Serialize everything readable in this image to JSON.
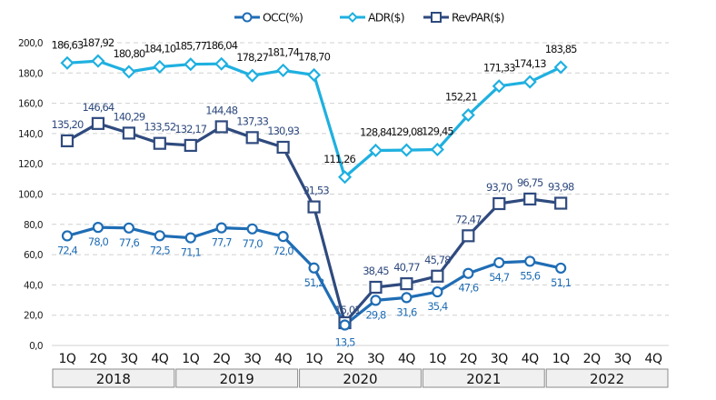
{
  "chart_data": {
    "type": "line",
    "title": "",
    "xlabel": "",
    "ylabel": "",
    "ylim": [
      0,
      200
    ],
    "yticks": [
      "0,0",
      "20,0",
      "40,0",
      "60,0",
      "80,0",
      "100,0",
      "120,0",
      "140,0",
      "160,0",
      "180,0",
      "200,0"
    ],
    "grid": true,
    "legend_position": "top-center",
    "years": [
      "2018",
      "2019",
      "2020",
      "2021",
      "2022"
    ],
    "quarters": [
      "1Q",
      "2Q",
      "3Q",
      "4Q"
    ],
    "categories": [
      "1Q",
      "2Q",
      "3Q",
      "4Q",
      "1Q",
      "2Q",
      "3Q",
      "4Q",
      "1Q",
      "2Q",
      "3Q",
      "4Q",
      "1Q",
      "2Q",
      "3Q",
      "4Q",
      "1Q",
      "2Q",
      "3Q",
      "4Q"
    ],
    "series": [
      {
        "name": "OCC(%)",
        "key": "occ",
        "color": "#1f6db5",
        "marker": "circle",
        "values": [
          72.4,
          78.0,
          77.6,
          72.5,
          71.1,
          77.7,
          77.0,
          72.0,
          51.2,
          13.5,
          29.8,
          31.6,
          35.4,
          47.6,
          54.7,
          55.6,
          51.1,
          null,
          null,
          null
        ],
        "labels": [
          "72,4",
          "78,0",
          "77,6",
          "72,5",
          "71,1",
          "77,7",
          "77,0",
          "72,0",
          "51,2",
          "13,5",
          "29,8",
          "31,6",
          "35,4",
          "47,6",
          "54,7",
          "55,6",
          "51,1",
          "",
          "",
          ""
        ]
      },
      {
        "name": "ADR($)",
        "key": "adr",
        "color": "#1fb0e0",
        "marker": "diamond",
        "values": [
          186.63,
          187.92,
          180.8,
          184.1,
          185.77,
          186.04,
          178.27,
          181.74,
          178.7,
          111.26,
          128.84,
          129.08,
          129.45,
          152.21,
          171.33,
          174.13,
          183.85,
          null,
          null,
          null
        ],
        "labels": [
          "186,63",
          "187,92",
          "180,80",
          "184,10",
          "185,77",
          "186,04",
          "178,27",
          "181,74",
          "178,70",
          "111,26",
          "128,84",
          "129,08",
          "129,45",
          "152,21",
          "171,33",
          "174,13",
          "183,85",
          "",
          "",
          ""
        ]
      },
      {
        "name": "RevPAR($)",
        "key": "rev",
        "color": "#2f4a7e",
        "marker": "square",
        "values": [
          135.2,
          146.64,
          140.29,
          133.52,
          132.17,
          144.48,
          137.33,
          130.93,
          91.53,
          15.01,
          38.45,
          40.77,
          45.78,
          72.47,
          93.7,
          96.75,
          93.98,
          null,
          null,
          null
        ],
        "labels": [
          "135,20",
          "146,64",
          "140,29",
          "133,52",
          "132,17",
          "144,48",
          "137,33",
          "130,93",
          "91,53",
          "15,01",
          "38,45",
          "40,77",
          "45,78",
          "72,47",
          "93,70",
          "96,75",
          "93,98",
          "",
          "",
          ""
        ]
      }
    ]
  },
  "colors": {
    "grid": "#d0d0d0",
    "year_box_fill": "#f0f0f0",
    "year_box_border": "#8c8c8c"
  }
}
